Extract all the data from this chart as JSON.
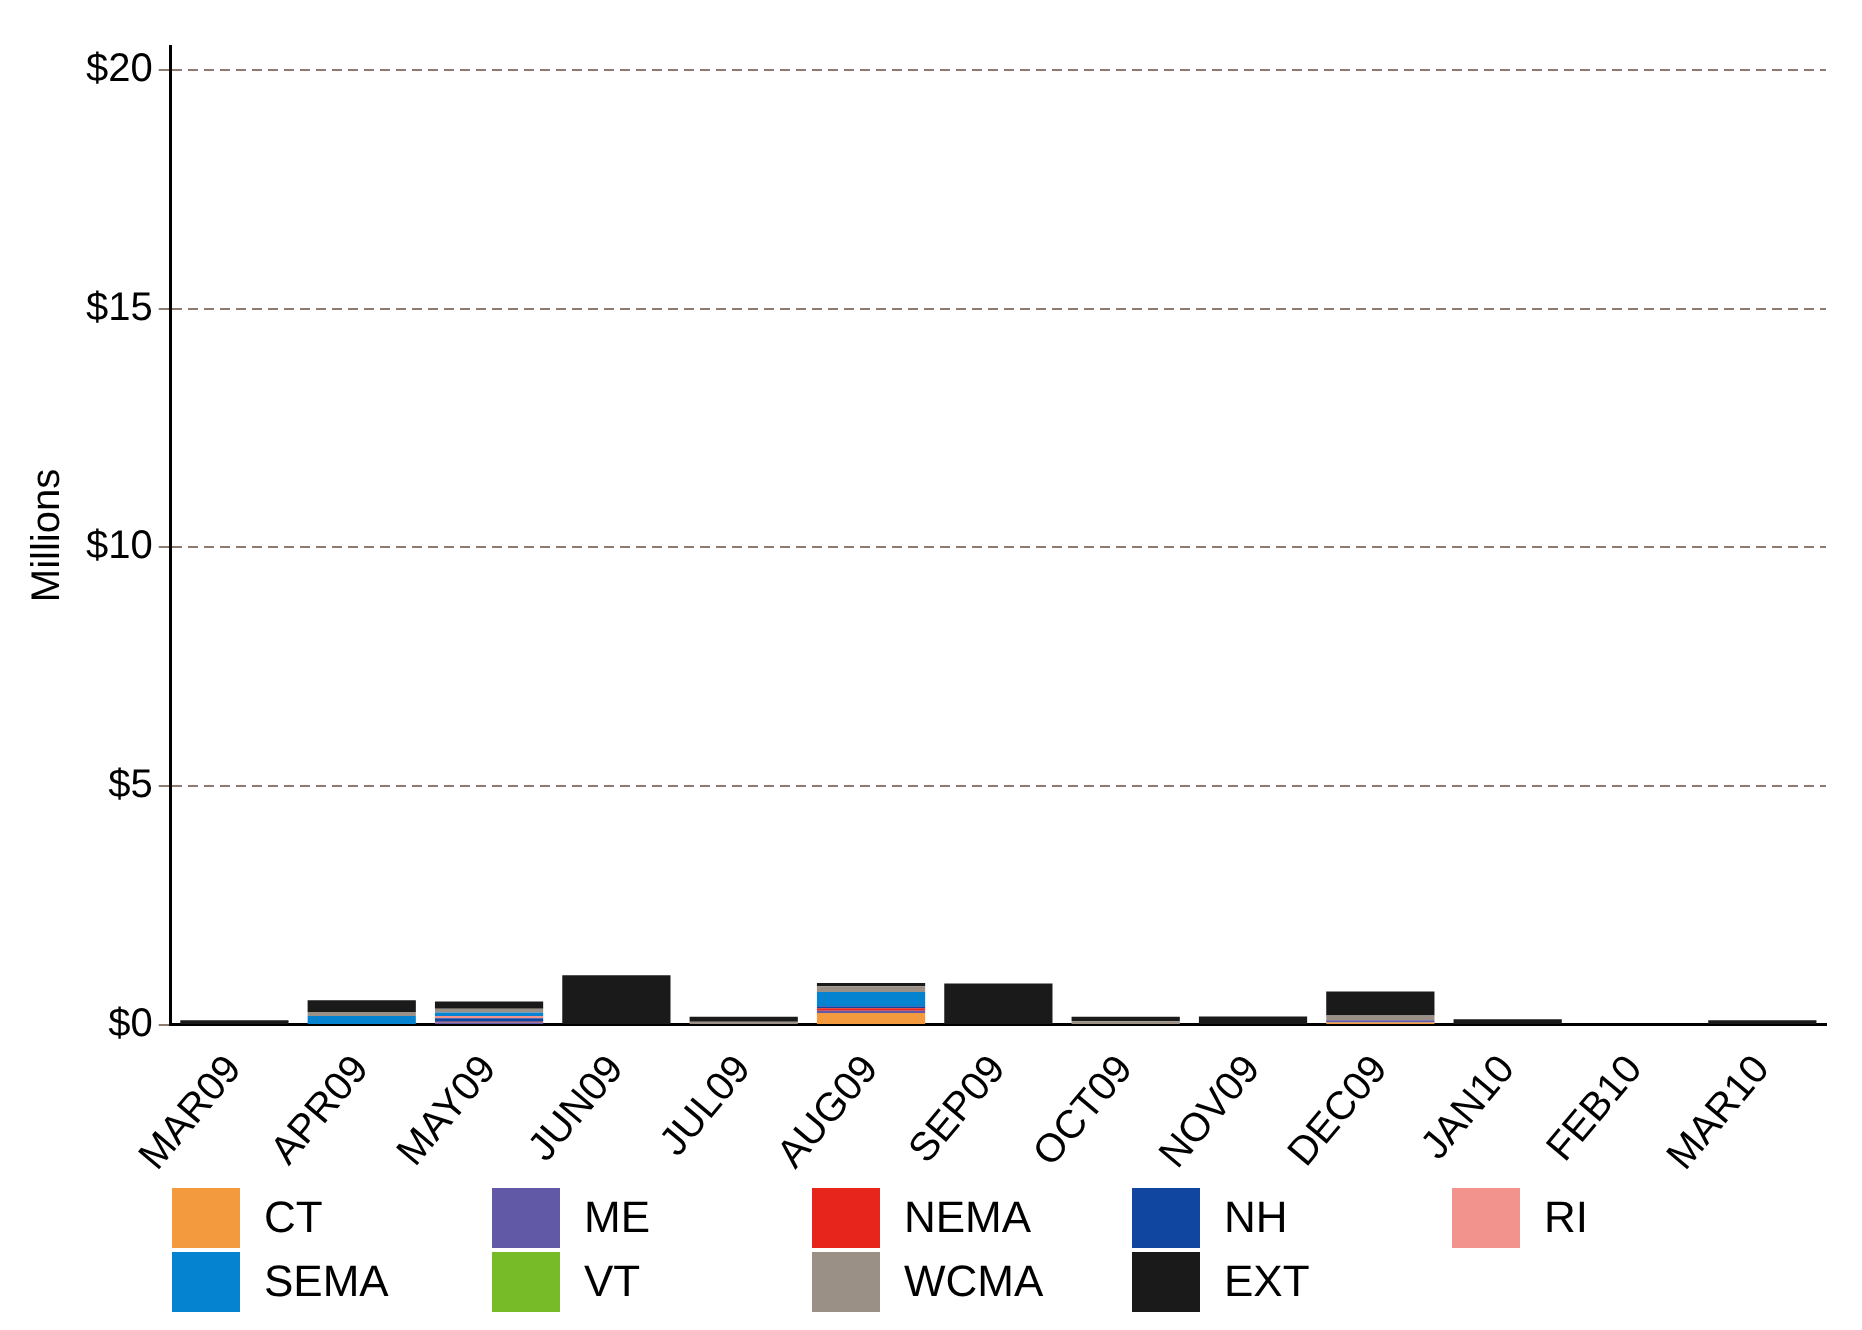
{
  "chart_data": {
    "type": "bar",
    "stacked": true,
    "ylabel": "Millions",
    "categories": [
      "MAR09",
      "APR09",
      "MAY09",
      "JUN09",
      "JUL09",
      "AUG09",
      "SEP09",
      "OCT09",
      "NOV09",
      "DEC09",
      "JAN10",
      "FEB10",
      "MAR10"
    ],
    "series": [
      {
        "name": "CT",
        "color": "#f39a3f",
        "values": [
          0,
          0,
          0,
          0,
          0,
          0.25,
          0,
          0,
          0,
          0.05,
          0,
          0,
          0
        ]
      },
      {
        "name": "ME",
        "color": "#6159a5",
        "values": [
          0,
          0,
          0.05,
          0,
          0,
          0.05,
          0,
          0,
          0,
          0.05,
          0,
          0,
          0
        ]
      },
      {
        "name": "NEMA",
        "color": "#e8251c",
        "values": [
          0,
          0,
          0.02,
          0,
          0,
          0.05,
          0,
          0,
          0,
          0,
          0,
          0,
          0
        ]
      },
      {
        "name": "NH",
        "color": "#1046a0",
        "values": [
          0,
          0.02,
          0.07,
          0,
          0,
          0.04,
          0,
          0,
          0,
          0,
          0,
          0,
          0
        ]
      },
      {
        "name": "RI",
        "color": "#f2938d",
        "values": [
          0,
          0,
          0.05,
          0,
          0,
          0,
          0,
          0,
          0,
          0,
          0,
          0,
          0
        ]
      },
      {
        "name": "SEMA",
        "color": "#0683d0",
        "values": [
          0,
          0.17,
          0.07,
          0,
          0,
          0.3,
          0,
          0,
          0,
          0,
          0,
          0,
          0
        ]
      },
      {
        "name": "VT",
        "color": "#77bb29",
        "values": [
          0,
          0,
          0,
          0,
          0,
          0,
          0,
          0,
          0,
          0,
          0,
          0,
          0
        ]
      },
      {
        "name": "WCMA",
        "color": "#9b9085",
        "values": [
          0,
          0.08,
          0.08,
          0,
          0.07,
          0.12,
          0,
          0.08,
          0,
          0.1,
          0,
          0,
          0
        ]
      },
      {
        "name": "EXT",
        "color": "#1a1a1a",
        "values": [
          0.1,
          0.25,
          0.15,
          1.04,
          0.1,
          0.07,
          0.87,
          0.09,
          0.18,
          0.5,
          0.12,
          0,
          0.1
        ]
      }
    ],
    "ylim": [
      0,
      20.5
    ],
    "yticks": [
      {
        "value": 0,
        "label": "$0"
      },
      {
        "value": 5,
        "label": "$5"
      },
      {
        "value": 10,
        "label": "$10"
      },
      {
        "value": 15,
        "label": "$15"
      },
      {
        "value": 20,
        "label": "$20"
      }
    ],
    "grid": "y",
    "legend": "bottom"
  }
}
